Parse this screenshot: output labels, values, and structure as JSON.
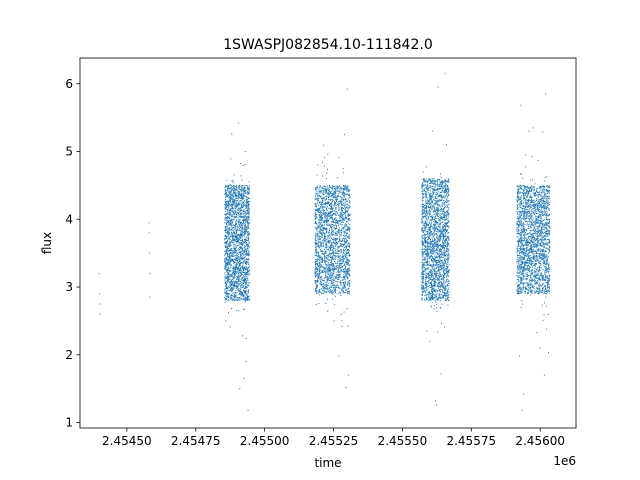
{
  "chart_data": {
    "type": "scatter",
    "title": "1SWASPJ082854.10-111842.0",
    "xlabel": "time",
    "ylabel": "flux",
    "x_offset_label": "1e6",
    "xlim": [
      2454330,
      2456130
    ],
    "ylim": [
      0.92,
      6.38
    ],
    "x_ticks": [
      2454500,
      2454750,
      2455000,
      2455250,
      2455500,
      2455750,
      2456000
    ],
    "x_tick_labels": [
      "2.45450",
      "2.45475",
      "2.45500",
      "2.45525",
      "2.45550",
      "2.45575",
      "2.45600"
    ],
    "y_ticks": [
      1,
      2,
      3,
      4,
      5,
      6
    ],
    "y_tick_labels": [
      "1",
      "2",
      "3",
      "4",
      "5",
      "6"
    ],
    "grid": false,
    "marker_color": "#1f77b4",
    "series": [
      {
        "x": [
          2454400,
          2454401,
          2454402,
          2454403,
          2454580,
          2454581,
          2454582,
          2454583,
          2454584
        ],
        "y": [
          3.2,
          2.9,
          2.75,
          2.6,
          3.95,
          3.8,
          3.5,
          3.2,
          2.85
        ]
      }
    ],
    "observing_seasons": [
      {
        "x_range": [
          2454855,
          2454945
        ],
        "core": [
          2.8,
          4.5
        ],
        "outliers": [
          [
            2454905,
            5.42
          ],
          [
            2454930,
            5.0
          ],
          [
            2454910,
            1.5
          ],
          [
            2454940,
            1.18
          ],
          [
            2454925,
            1.65
          ],
          [
            2454932,
            1.9
          ],
          [
            2454860,
            2.5
          ]
        ]
      },
      {
        "x_range": [
          2455183,
          2455310
        ],
        "core": [
          2.9,
          4.5
        ],
        "outliers": [
          [
            2455290,
            5.25
          ],
          [
            2455300,
            5.92
          ],
          [
            2455270,
            1.98
          ],
          [
            2455280,
            2.5
          ],
          [
            2455295,
            1.52
          ],
          [
            2455305,
            1.7
          ],
          [
            2455285,
            4.75
          ]
        ]
      },
      {
        "x_range": [
          2455570,
          2455670
        ],
        "core": [
          2.8,
          4.6
        ],
        "outliers": [
          [
            2455610,
            5.3
          ],
          [
            2455630,
            5.95
          ],
          [
            2455655,
            6.15
          ],
          [
            2455620,
            1.32
          ],
          [
            2455640,
            1.72
          ],
          [
            2455625,
            1.26
          ],
          [
            2455600,
            2.2
          ],
          [
            2455660,
            5.1
          ]
        ]
      },
      {
        "x_range": [
          2455915,
          2456035
        ],
        "core": [
          2.9,
          4.5
        ],
        "outliers": [
          [
            2455930,
            5.68
          ],
          [
            2455960,
            5.3
          ],
          [
            2456020,
            5.85
          ],
          [
            2455935,
            1.18
          ],
          [
            2455940,
            1.42
          ],
          [
            2456015,
            1.7
          ],
          [
            2455925,
            1.98
          ],
          [
            2456000,
            2.1
          ]
        ]
      }
    ]
  }
}
